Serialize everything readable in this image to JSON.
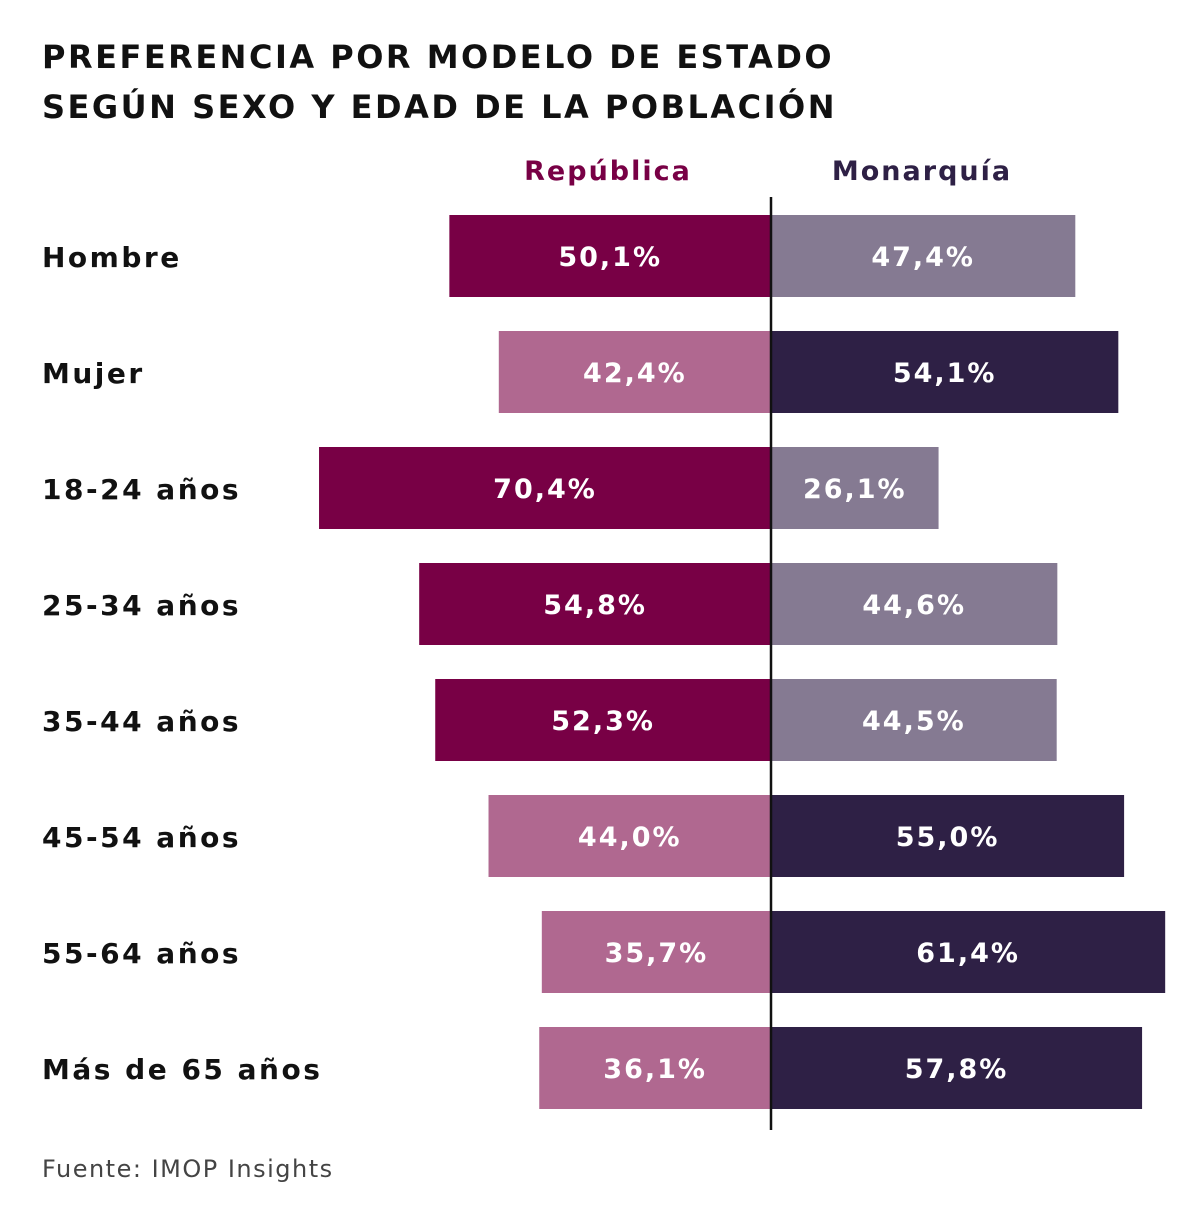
{
  "title_lines": [
    "PREFERENCIA POR MODELO DE ESTADO",
    "SEGÚN SEXO Y EDAD DE LA POBLACIÓN"
  ],
  "source": "Fuente: IMOP Insights",
  "colors": {
    "republica_winner": "#780045",
    "republica_loser": "#b06890",
    "monarquia_winner": "#2e2045",
    "monarquia_loser": "#857a92",
    "divider": "#111111",
    "label_text": "#111111",
    "bar_text": "#ffffff"
  },
  "chart_data": {
    "type": "bar",
    "orientation": "horizontal-diverging",
    "title": "PREFERENCIA POR MODELO DE ESTADO SEGÚN SEXO Y EDAD DE LA POBLACIÓN",
    "categories": [
      "Hombre",
      "Mujer",
      "18-24 años",
      "25-34 años",
      "35-44 años",
      "45-54 años",
      "55-64 años",
      "Más de 65 años"
    ],
    "series": [
      {
        "name": "República",
        "header_color": "#780045",
        "values": [
          50.1,
          42.4,
          70.4,
          54.8,
          52.3,
          44.0,
          35.7,
          36.1
        ],
        "labels": [
          "50,1%",
          "42,4%",
          "70,4%",
          "54,8%",
          "52,3%",
          "44,0%",
          "35,7%",
          "36,1%"
        ]
      },
      {
        "name": "Monarquía",
        "header_color": "#2e2045",
        "values": [
          47.4,
          54.1,
          26.1,
          44.6,
          44.5,
          55.0,
          61.4,
          57.8
        ],
        "labels": [
          "47,4%",
          "54,1%",
          "26,1%",
          "44,6%",
          "44,5%",
          "55,0%",
          "61,4%",
          "57,8%"
        ]
      }
    ],
    "legend": "top",
    "grid": false
  }
}
